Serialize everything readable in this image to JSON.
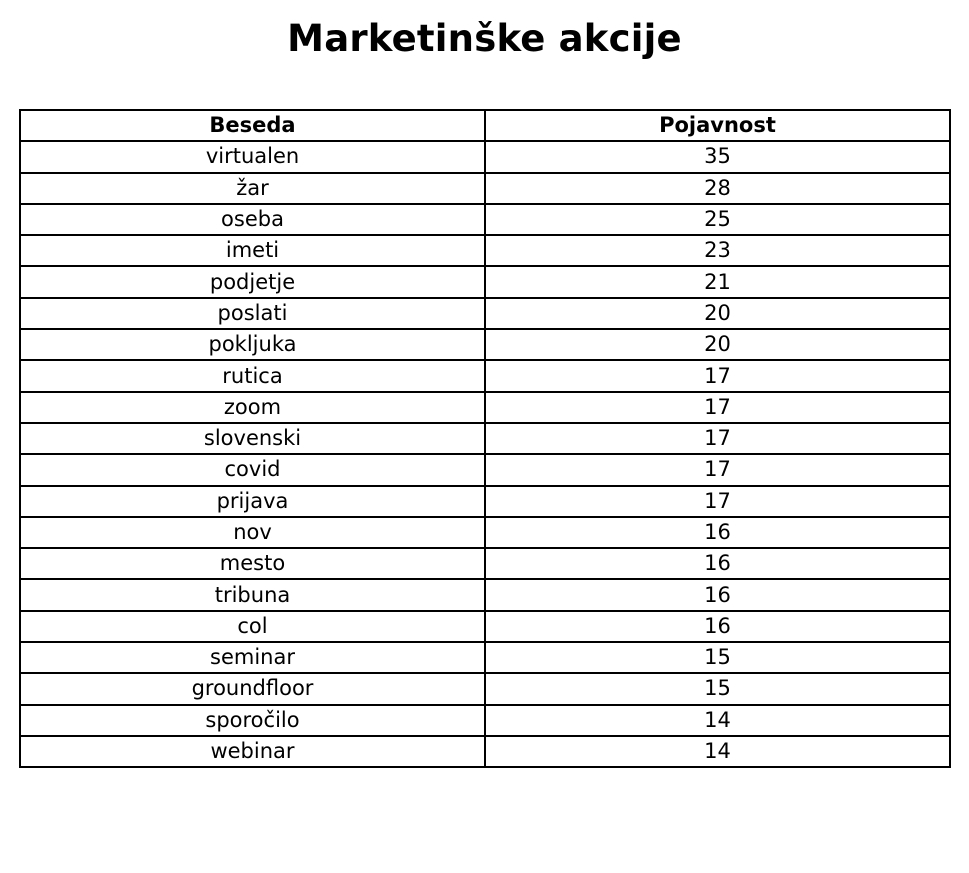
{
  "chart_data": {
    "type": "table",
    "title": "Marketinške akcije",
    "columns": [
      "Beseda",
      "Pojavnost"
    ],
    "rows": [
      [
        "virtualen",
        "35"
      ],
      [
        "žar",
        "28"
      ],
      [
        "oseba",
        "25"
      ],
      [
        "imeti",
        "23"
      ],
      [
        "podjetje",
        "21"
      ],
      [
        "poslati",
        "20"
      ],
      [
        "pokljuka",
        "20"
      ],
      [
        "rutica",
        "17"
      ],
      [
        "zoom",
        "17"
      ],
      [
        "slovenski",
        "17"
      ],
      [
        "covid",
        "17"
      ],
      [
        "prijava",
        "17"
      ],
      [
        "nov",
        "16"
      ],
      [
        "mesto",
        "16"
      ],
      [
        "tribuna",
        "16"
      ],
      [
        "col",
        "16"
      ],
      [
        "seminar",
        "15"
      ],
      [
        "groundfloor",
        "15"
      ],
      [
        "sporočilo",
        "14"
      ],
      [
        "webinar",
        "14"
      ]
    ]
  }
}
